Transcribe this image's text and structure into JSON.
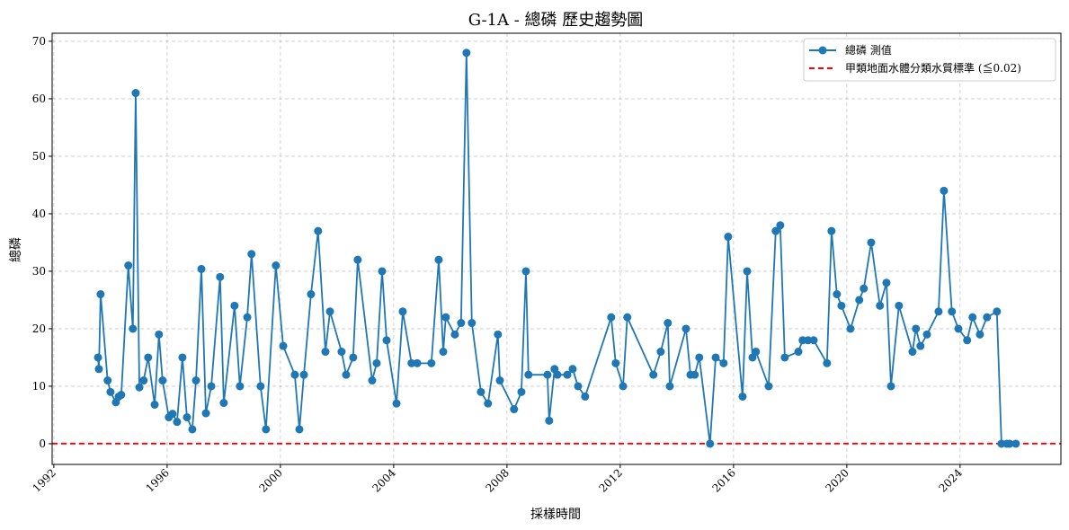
{
  "chart_data": {
    "type": "line",
    "title": "G-1A - 總磷 歷史趨勢圖",
    "xlabel": "採樣時間",
    "ylabel": "總磷",
    "xlim": [
      1991.94,
      2027.56
    ],
    "ylim": [
      -3.6,
      71.4
    ],
    "grid": true,
    "legend_position": "top-right",
    "x_ticks": [
      1992,
      1996,
      2000,
      2004,
      2008,
      2012,
      2016,
      2020,
      2024
    ],
    "y_ticks": [
      0,
      10,
      20,
      30,
      40,
      50,
      60,
      70
    ],
    "series": [
      {
        "name": "總磷 測值",
        "color": "#1f77b4",
        "x": [
          1993.56,
          1993.59,
          1993.65,
          1993.9,
          1994.0,
          1994.19,
          1994.29,
          1994.38,
          1994.63,
          1994.79,
          1994.89,
          1995.02,
          1995.17,
          1995.33,
          1995.56,
          1995.71,
          1995.84,
          1996.06,
          1996.19,
          1996.35,
          1996.54,
          1996.7,
          1996.89,
          1997.02,
          1997.21,
          1997.37,
          1997.56,
          1997.87,
          1998.0,
          1998.38,
          1998.57,
          1998.83,
          1998.98,
          1999.3,
          1999.49,
          1999.84,
          2000.1,
          2000.51,
          2000.67,
          2000.83,
          2001.08,
          2001.33,
          2001.59,
          2001.75,
          2002.16,
          2002.32,
          2002.57,
          2002.73,
          2003.24,
          2003.4,
          2003.59,
          2003.75,
          2004.1,
          2004.32,
          2004.63,
          2004.83,
          2005.33,
          2005.59,
          2005.75,
          2005.84,
          2006.16,
          2006.38,
          2006.57,
          2006.76,
          2007.08,
          2007.33,
          2007.68,
          2007.75,
          2008.25,
          2008.51,
          2008.67,
          2008.76,
          2009.43,
          2009.49,
          2009.68,
          2009.78,
          2010.13,
          2010.32,
          2010.51,
          2010.76,
          2011.68,
          2011.84,
          2012.1,
          2012.25,
          2013.17,
          2013.43,
          2013.68,
          2013.75,
          2014.32,
          2014.48,
          2014.63,
          2014.79,
          2015.17,
          2015.37,
          2015.65,
          2015.81,
          2016.32,
          2016.48,
          2016.67,
          2016.79,
          2017.24,
          2017.49,
          2017.65,
          2017.81,
          2018.29,
          2018.44,
          2018.63,
          2018.83,
          2019.3,
          2019.46,
          2019.65,
          2019.81,
          2020.13,
          2020.44,
          2020.6,
          2020.86,
          2021.17,
          2021.4,
          2021.56,
          2021.84,
          2022.32,
          2022.44,
          2022.6,
          2022.83,
          2023.24,
          2023.43,
          2023.71,
          2023.94,
          2024.25,
          2024.44,
          2024.7,
          2024.95,
          2025.3,
          2025.46,
          2025.65,
          2025.75,
          2025.97
        ],
        "y": [
          15,
          13,
          26,
          11,
          9,
          7.2,
          8.2,
          8.5,
          31,
          20,
          61,
          9.8,
          11,
          15,
          6.8,
          19,
          11,
          4.6,
          5.2,
          3.8,
          15,
          4.6,
          2.5,
          11,
          30.4,
          5.3,
          10,
          29,
          7.1,
          24,
          10,
          22,
          33,
          10,
          2.5,
          31,
          17,
          12,
          2.5,
          12,
          26,
          37,
          16,
          23,
          16,
          12,
          15,
          32,
          11,
          14,
          30,
          18,
          7,
          23,
          14,
          14,
          14,
          32,
          16,
          22,
          19,
          21,
          68,
          21,
          9,
          7,
          19,
          11,
          6,
          9,
          30,
          12,
          12,
          4,
          13,
          12,
          12,
          13,
          10,
          8.2,
          22,
          14,
          10,
          22,
          12,
          16,
          21,
          10,
          20,
          12,
          12,
          15,
          0,
          15,
          14,
          36,
          8.2,
          30,
          15,
          16,
          10,
          37,
          38,
          15,
          16,
          18,
          18,
          18,
          14,
          37,
          26,
          24,
          20,
          25,
          27,
          35,
          24,
          28,
          10,
          24,
          16,
          20,
          17,
          19,
          23,
          44,
          23,
          20,
          18,
          22,
          19,
          22,
          23,
          0,
          0,
          0,
          0
        ]
      },
      {
        "name": "甲類地面水體分類水質標準 (≦0.02)",
        "color": "#ff0000",
        "constant_y": 0.02
      }
    ]
  }
}
